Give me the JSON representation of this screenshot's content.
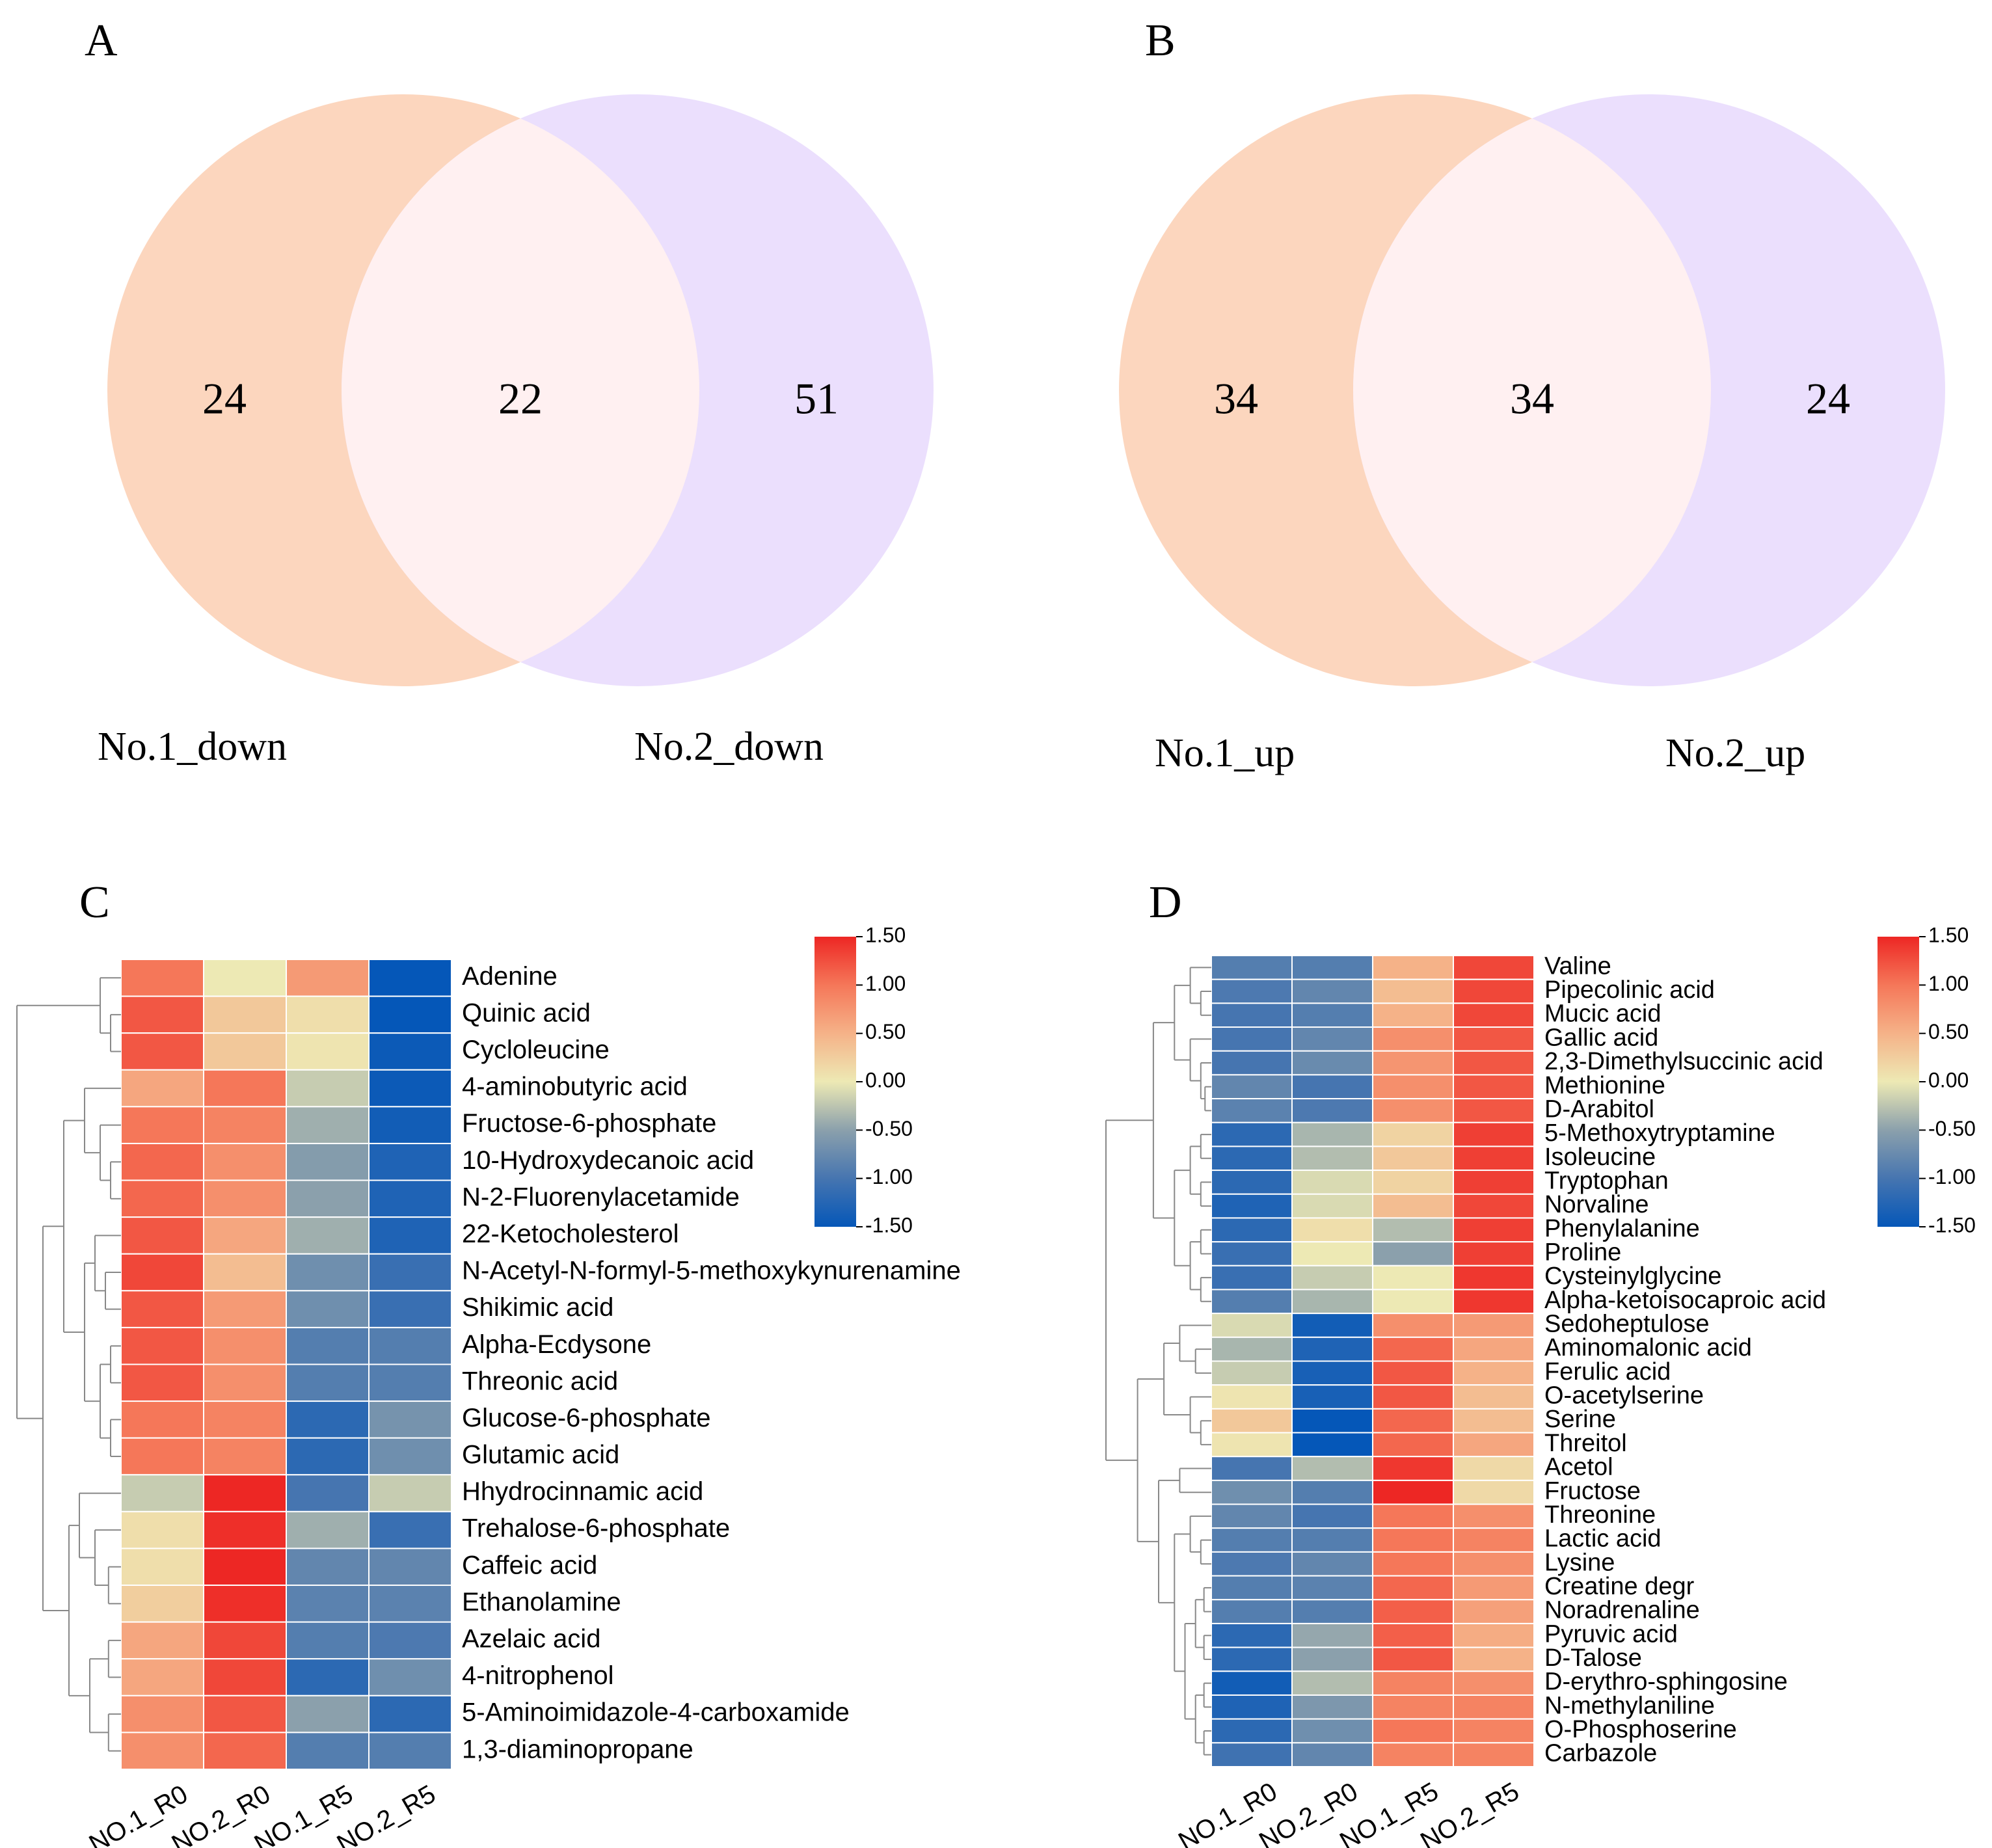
{
  "chart_data": [
    {
      "type": "venn",
      "panel_label": "A",
      "sets": [
        "No.1_down",
        "No.2_down"
      ],
      "counts": {
        "only_first": 24,
        "intersection": 22,
        "only_second": 51
      },
      "colors": {
        "first": "#fcd6be",
        "second": "#ebdffd",
        "intersection": "#fff0f1"
      }
    },
    {
      "type": "venn",
      "panel_label": "B",
      "sets": [
        "No.1_up",
        "No.2_up"
      ],
      "counts": {
        "only_first": 34,
        "intersection": 34,
        "only_second": 24
      },
      "colors": {
        "first": "#fcd6be",
        "second": "#ebdffd",
        "intersection": "#fff0f1"
      }
    },
    {
      "type": "heatmap",
      "panel_label": "C",
      "columns": [
        "NO.1_R0",
        "NO.2_R0",
        "NO.1_R5",
        "NO.2_R5"
      ],
      "rows": [
        "Adenine",
        "Quinic acid",
        "Cycloleucine",
        "4-aminobutyric acid",
        "Fructose-6-phosphate",
        "10-Hydroxydecanoic acid",
        "N-2-Fluorenylacetamide",
        "22-Ketocholesterol",
        "N-Acetyl-N-formyl-5-methoxykynurenamine",
        "Shikimic acid",
        "Alpha-Ecdysone",
        "Threonic acid",
        "Glucose-6-phosphate",
        "Glutamic acid",
        "Hhydrocinnamic acid",
        "Trehalose-6-phosphate",
        "Caffeic acid",
        "Ethanolamine",
        "Azelaic acid",
        "4-nitrophenol",
        "5-Aminoimidazole-4-carboxamide",
        "1,3-diaminopropane"
      ],
      "values": [
        [
          1.0,
          0.0,
          0.7,
          -1.5
        ],
        [
          1.2,
          0.3,
          0.1,
          -1.5
        ],
        [
          1.2,
          0.3,
          0.05,
          -1.45
        ],
        [
          0.6,
          1.0,
          -0.2,
          -1.45
        ],
        [
          1.0,
          0.9,
          -0.4,
          -1.4
        ],
        [
          1.1,
          0.8,
          -0.55,
          -1.3
        ],
        [
          1.1,
          0.8,
          -0.5,
          -1.3
        ],
        [
          1.2,
          0.6,
          -0.4,
          -1.3
        ],
        [
          1.3,
          0.4,
          -0.7,
          -1.1
        ],
        [
          1.2,
          0.7,
          -0.7,
          -1.1
        ],
        [
          1.2,
          0.8,
          -0.9,
          -0.9
        ],
        [
          1.2,
          0.8,
          -0.9,
          -0.9
        ],
        [
          1.0,
          0.9,
          -1.2,
          -0.65
        ],
        [
          1.0,
          0.9,
          -1.2,
          -0.7
        ],
        [
          -0.2,
          1.5,
          -1.0,
          -0.2
        ],
        [
          0.1,
          1.45,
          -0.4,
          -1.1
        ],
        [
          0.1,
          1.5,
          -0.8,
          -0.8
        ],
        [
          0.25,
          1.45,
          -0.85,
          -0.85
        ],
        [
          0.6,
          1.3,
          -0.9,
          -0.95
        ],
        [
          0.6,
          1.3,
          -1.2,
          -0.7
        ],
        [
          0.8,
          1.2,
          -0.5,
          -1.2
        ],
        [
          0.8,
          1.1,
          -0.9,
          -0.9
        ]
      ],
      "colorbar": {
        "min": -1.5,
        "max": 1.5,
        "ticks": [
          "1.50",
          "1.00",
          "0.50",
          "0.00",
          "-0.50",
          "-1.00",
          "-1.50"
        ]
      }
    },
    {
      "type": "heatmap",
      "panel_label": "D",
      "columns": [
        "NO.1_R0",
        "NO.2_R0",
        "NO.1_R5",
        "NO.2_R5"
      ],
      "rows": [
        "Valine",
        "Pipecolinic acid",
        "Mucic acid",
        "Gallic acid",
        "2,3-Dimethylsuccinic acid",
        "Methionine",
        "D-Arabitol",
        "5-Methoxytryptamine",
        "Isoleucine",
        "Tryptophan",
        "Norvaline",
        "Phenylalanine",
        "Proline",
        "Cysteinylglycine",
        "Alpha-ketoisocaproic acid",
        "Sedoheptulose",
        "Aminomalonic acid",
        "Ferulic acid",
        "O-acetylserine",
        "Serine",
        "Threitol",
        "Acetol",
        "Fructose",
        "Threonine",
        "Lactic acid",
        "Lysine",
        "Creatine degr",
        "Noradrenaline",
        "Pyruvic acid",
        "D-Talose",
        "D-erythro-sphingosine",
        "N-methylaniline",
        "O-Phosphoserine",
        "Carbazole"
      ],
      "values": [
        [
          -0.9,
          -0.9,
          0.5,
          1.3
        ],
        [
          -0.95,
          -0.8,
          0.4,
          1.3
        ],
        [
          -1.0,
          -0.9,
          0.5,
          1.3
        ],
        [
          -1.0,
          -0.8,
          0.8,
          1.2
        ],
        [
          -1.0,
          -0.75,
          0.75,
          1.2
        ],
        [
          -0.8,
          -1.0,
          0.8,
          1.2
        ],
        [
          -0.85,
          -0.95,
          0.8,
          1.2
        ],
        [
          -1.2,
          -0.35,
          0.2,
          1.35
        ],
        [
          -1.2,
          -0.3,
          0.3,
          1.35
        ],
        [
          -1.2,
          -0.1,
          0.2,
          1.35
        ],
        [
          -1.3,
          -0.1,
          0.4,
          1.3
        ],
        [
          -1.2,
          0.1,
          -0.3,
          1.35
        ],
        [
          -1.1,
          0.0,
          -0.5,
          1.35
        ],
        [
          -1.1,
          -0.2,
          0.0,
          1.4
        ],
        [
          -0.9,
          -0.35,
          0.0,
          1.4
        ],
        [
          -0.1,
          -1.4,
          0.8,
          0.7
        ],
        [
          -0.35,
          -1.3,
          1.1,
          0.6
        ],
        [
          -0.2,
          -1.35,
          1.2,
          0.5
        ],
        [
          0.05,
          -1.35,
          1.2,
          0.4
        ],
        [
          0.3,
          -1.5,
          1.1,
          0.4
        ],
        [
          0.05,
          -1.5,
          1.1,
          0.6
        ],
        [
          -1.0,
          -0.3,
          1.4,
          0.15
        ],
        [
          -0.7,
          -0.9,
          1.5,
          0.15
        ],
        [
          -0.8,
          -1.0,
          1.0,
          0.8
        ],
        [
          -0.9,
          -0.9,
          1.0,
          0.9
        ],
        [
          -0.95,
          -0.8,
          1.0,
          0.8
        ],
        [
          -0.9,
          -0.85,
          1.1,
          0.7
        ],
        [
          -0.9,
          -0.9,
          1.15,
          0.65
        ],
        [
          -1.2,
          -0.45,
          1.15,
          0.55
        ],
        [
          -1.2,
          -0.5,
          1.2,
          0.5
        ],
        [
          -1.4,
          -0.3,
          0.9,
          0.8
        ],
        [
          -1.3,
          -0.6,
          0.9,
          0.9
        ],
        [
          -1.2,
          -0.7,
          1.0,
          0.9
        ],
        [
          -1.05,
          -0.8,
          0.9,
          0.9
        ]
      ],
      "colorbar": {
        "min": -1.5,
        "max": 1.5,
        "ticks": [
          "1.50",
          "1.00",
          "0.50",
          "0.00",
          "-0.50",
          "-1.00",
          "-1.50"
        ]
      }
    }
  ]
}
